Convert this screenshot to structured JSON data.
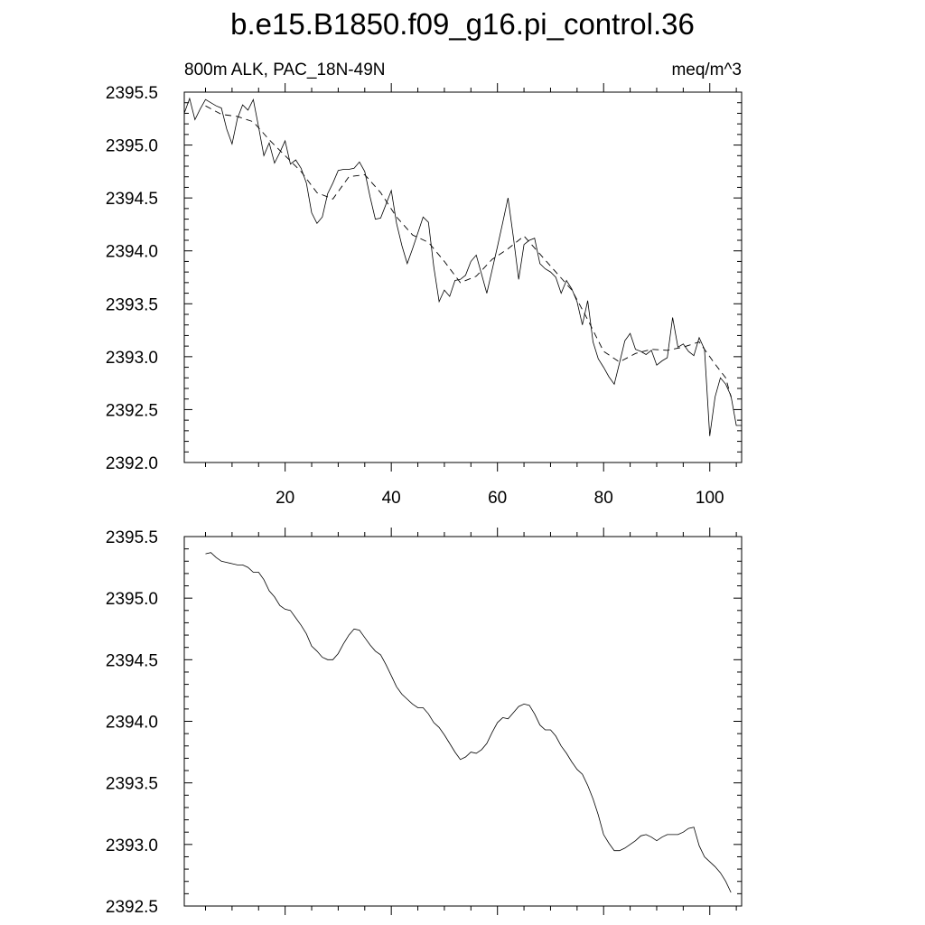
{
  "title": "b.e15.B1850.f09_g16.pi_control.36",
  "chart_data": [
    {
      "type": "line",
      "left_label": "800m ALK, PAC_18N-49N",
      "right_label": "meq/m^3",
      "xlim": [
        1,
        106
      ],
      "ylim": [
        2392.0,
        2395.5
      ],
      "x_ticks": [
        20,
        40,
        60,
        80,
        100
      ],
      "x_tick_labels": [
        "20",
        "40",
        "60",
        "80",
        "100"
      ],
      "y_ticks": [
        2392.0,
        2392.5,
        2393.0,
        2393.5,
        2394.0,
        2394.5,
        2395.0,
        2395.5
      ],
      "y_tick_labels": [
        "2392.0",
        "2392.5",
        "2393.0",
        "2393.5",
        "2394.0",
        "2394.5",
        "2395.0",
        "2395.5"
      ],
      "grid": false,
      "series": [
        {
          "style": "solid",
          "x": [
            1,
            2,
            3,
            4,
            5,
            6,
            7,
            8,
            9,
            10,
            11,
            12,
            13,
            14,
            15,
            16,
            17,
            18,
            19,
            20,
            21,
            22,
            23,
            24,
            25,
            26,
            27,
            28,
            29,
            30,
            31,
            32,
            33,
            34,
            35,
            36,
            37,
            38,
            39,
            40,
            41,
            42,
            43,
            44,
            45,
            46,
            47,
            48,
            49,
            50,
            51,
            52,
            53,
            54,
            55,
            56,
            57,
            58,
            59,
            60,
            61,
            62,
            63,
            64,
            65,
            66,
            67,
            68,
            69,
            70,
            71,
            72,
            73,
            74,
            75,
            76,
            77,
            78,
            79,
            80,
            81,
            82,
            83,
            84,
            85,
            86,
            87,
            88,
            89,
            90,
            91,
            92,
            93,
            94,
            95,
            96,
            97,
            98,
            99,
            100,
            101,
            102,
            103,
            104,
            105,
            106
          ],
          "y": [
            2395.3,
            2395.44,
            2395.24,
            2395.34,
            2395.43,
            2395.4,
            2395.37,
            2395.35,
            2395.15,
            2395.01,
            2395.25,
            2395.38,
            2395.33,
            2395.43,
            2395.17,
            2394.9,
            2395.02,
            2394.83,
            2394.93,
            2395.04,
            2394.82,
            2394.86,
            2394.78,
            2394.64,
            2394.36,
            2394.26,
            2394.32,
            2394.54,
            2394.64,
            2394.76,
            2394.77,
            2394.77,
            2394.78,
            2394.84,
            2394.75,
            2394.51,
            2394.3,
            2394.31,
            2394.44,
            2394.57,
            2394.26,
            2394.05,
            2393.88,
            2394.02,
            2394.17,
            2394.32,
            2394.27,
            2393.85,
            2393.52,
            2393.63,
            2393.57,
            2393.72,
            2393.73,
            2393.77,
            2393.9,
            2393.96,
            2393.78,
            2393.6,
            2393.82,
            2394.04,
            2394.27,
            2394.5,
            2394.13,
            2393.73,
            2394.06,
            2394.1,
            2394.12,
            2393.88,
            2393.83,
            2393.8,
            2393.75,
            2393.6,
            2393.72,
            2393.64,
            2393.52,
            2393.3,
            2393.53,
            2393.14,
            2392.98,
            2392.9,
            2392.81,
            2392.74,
            2392.94,
            2393.15,
            2393.22,
            2393.07,
            2393.05,
            2393.02,
            2393.06,
            2392.92,
            2392.96,
            2392.99,
            2393.37,
            2393.09,
            2393.12,
            2393.05,
            2393.01,
            2393.18,
            2393.07,
            2392.25,
            2392.62,
            2392.8,
            2392.74,
            2392.63,
            2392.35,
            2392.35
          ]
        },
        {
          "style": "dashed",
          "x": [
            5,
            8,
            11,
            14,
            17,
            20,
            23,
            26,
            29,
            32,
            35,
            38,
            41,
            44,
            47,
            50,
            53,
            56,
            59,
            62,
            65,
            68,
            71,
            74,
            77,
            80,
            83,
            86,
            89,
            92,
            95,
            98,
            101,
            103,
            104
          ],
          "y": [
            2395.37,
            2395.29,
            2395.27,
            2395.22,
            2395.05,
            2394.9,
            2394.75,
            2394.55,
            2394.49,
            2394.7,
            2394.72,
            2394.55,
            2394.32,
            2394.15,
            2394.08,
            2393.9,
            2393.7,
            2393.76,
            2393.92,
            2394.02,
            2394.14,
            2393.97,
            2393.8,
            2393.63,
            2393.35,
            2393.05,
            2392.95,
            2393.03,
            2393.07,
            2393.06,
            2393.09,
            2393.14,
            2392.93,
            2392.8,
            2392.62
          ]
        }
      ]
    },
    {
      "type": "line",
      "xlim": [
        1,
        106
      ],
      "ylim": [
        2392.5,
        2395.5
      ],
      "x_ticks": [
        20,
        40,
        60,
        80,
        100
      ],
      "y_ticks": [
        2392.5,
        2393.0,
        2393.5,
        2394.0,
        2394.5,
        2395.0,
        2395.5
      ],
      "y_tick_labels": [
        "2392.5",
        "2393.0",
        "2393.5",
        "2394.0",
        "2394.5",
        "2395.0",
        "2395.5"
      ],
      "grid": false,
      "series": [
        {
          "style": "solid",
          "x": [
            5,
            6,
            7,
            8,
            9,
            10,
            11,
            12,
            13,
            14,
            15,
            16,
            17,
            18,
            19,
            20,
            21,
            22,
            23,
            24,
            25,
            26,
            27,
            28,
            29,
            30,
            31,
            32,
            33,
            34,
            35,
            36,
            37,
            38,
            39,
            40,
            41,
            42,
            43,
            44,
            45,
            46,
            47,
            48,
            49,
            50,
            51,
            52,
            53,
            54,
            55,
            56,
            57,
            58,
            59,
            60,
            61,
            62,
            63,
            64,
            65,
            66,
            67,
            68,
            69,
            70,
            71,
            72,
            73,
            74,
            75,
            76,
            77,
            78,
            79,
            80,
            81,
            82,
            83,
            84,
            85,
            86,
            87,
            88,
            89,
            90,
            91,
            92,
            93,
            94,
            95,
            96,
            97,
            98,
            99,
            100,
            101,
            102,
            103,
            104
          ],
          "y": [
            2395.36,
            2395.37,
            2395.33,
            2395.3,
            2395.29,
            2395.28,
            2395.27,
            2395.27,
            2395.25,
            2395.21,
            2395.21,
            2395.15,
            2395.06,
            2395.01,
            2394.94,
            2394.91,
            2394.9,
            2394.84,
            2394.78,
            2394.71,
            2394.61,
            2394.57,
            2394.52,
            2394.5,
            2394.5,
            2394.55,
            2394.63,
            2394.7,
            2394.75,
            2394.74,
            2394.68,
            2394.62,
            2394.57,
            2394.54,
            2394.46,
            2394.37,
            2394.28,
            2394.22,
            2394.18,
            2394.14,
            2394.11,
            2394.11,
            2394.06,
            2393.99,
            2393.95,
            2393.89,
            2393.82,
            2393.75,
            2393.69,
            2393.71,
            2393.75,
            2393.74,
            2393.77,
            2393.82,
            2393.91,
            2393.99,
            2394.03,
            2394.02,
            2394.07,
            2394.12,
            2394.14,
            2394.13,
            2394.06,
            2393.97,
            2393.93,
            2393.93,
            2393.88,
            2393.8,
            2393.74,
            2393.67,
            2393.61,
            2393.57,
            2393.48,
            2393.37,
            2393.24,
            2393.08,
            2393.01,
            2392.95,
            2392.95,
            2392.97,
            2393.0,
            2393.03,
            2393.07,
            2393.08,
            2393.06,
            2393.03,
            2393.06,
            2393.08,
            2393.08,
            2393.08,
            2393.1,
            2393.13,
            2393.14,
            2392.99,
            2392.9,
            2392.86,
            2392.82,
            2392.77,
            2392.7,
            2392.61
          ]
        }
      ]
    }
  ]
}
